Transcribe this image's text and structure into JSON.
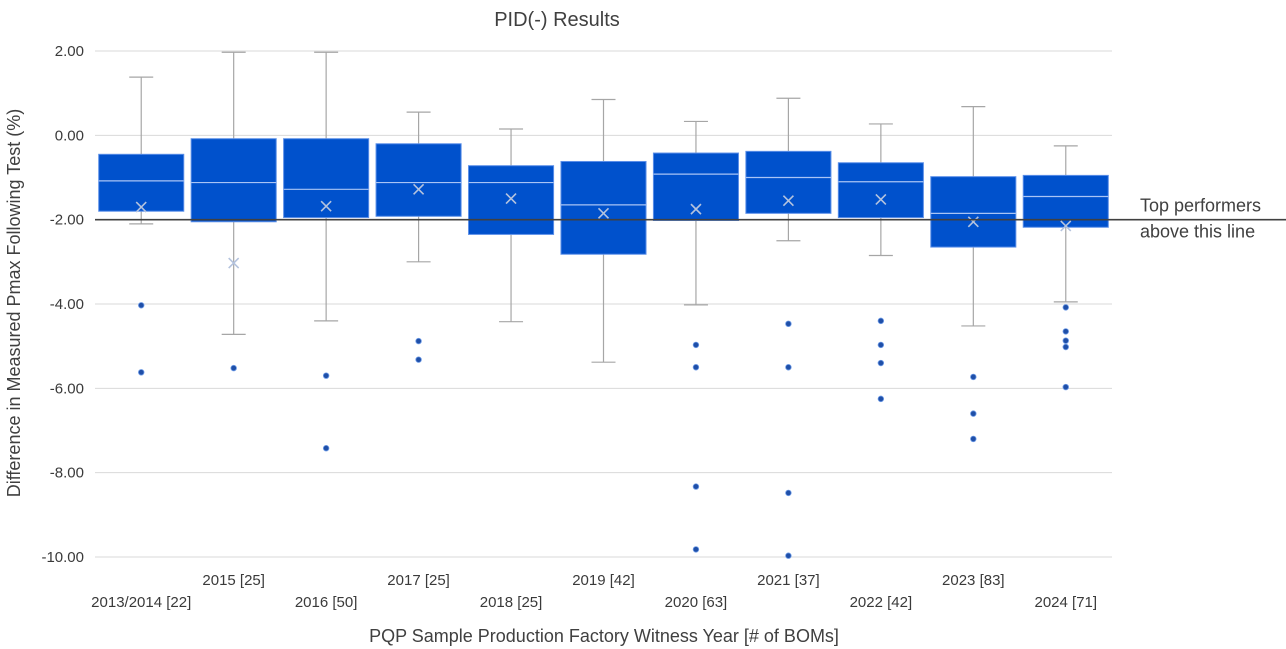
{
  "chart_data": {
    "type": "box",
    "title": "PID(-) Results",
    "xlabel": "PQP Sample Production Factory Witness Year [# of BOMs]",
    "ylabel": "Difference in Measured Pmax Following Test (%)",
    "ylim": [
      -10,
      2
    ],
    "yticks": [
      "2.00",
      "0.00",
      "-2.00",
      "-4.00",
      "-6.00",
      "-8.00",
      "-10.00"
    ],
    "grid": true,
    "legend": "none",
    "reference_line": {
      "y": -2,
      "label_lines": [
        "Top performers",
        "above this line"
      ]
    },
    "colors": {
      "box": "#0051CC",
      "box_edge": "#5B8FE8",
      "whisker": "#A6A6A6",
      "median": "#A9C4F5",
      "mean": "#B4C3DE",
      "outlier": "#1F4FA8",
      "ref_line": "#404040",
      "grid": "#D9D9D9"
    },
    "categories": [
      "2013/2014 [22]",
      "2015 [25]",
      "2016 [50]",
      "2017 [25]",
      "2018 [25]",
      "2019 [42]",
      "2020 [63]",
      "2021 [37]",
      "2022 [42]",
      "2023 [83]",
      "2024 [71]"
    ],
    "boxes": [
      {
        "category": "2013/2014 [22]",
        "whisker_low": -2.1,
        "q1": -1.8,
        "median": -1.08,
        "q3": -0.45,
        "whisker_high": 1.38,
        "mean": -1.7,
        "outliers": [
          -4.03,
          -5.62
        ]
      },
      {
        "category": "2015 [25]",
        "whisker_low": -4.72,
        "q1": -2.05,
        "median": -1.12,
        "q3": -0.08,
        "whisker_high": 1.97,
        "mean": -3.03,
        "outliers": [
          -5.52
        ]
      },
      {
        "category": "2016 [50]",
        "whisker_low": -4.4,
        "q1": -1.95,
        "median": -1.28,
        "q3": -0.08,
        "whisker_high": 1.97,
        "mean": -1.68,
        "outliers": [
          -5.7,
          -7.42
        ]
      },
      {
        "category": "2017 [25]",
        "whisker_low": -3.0,
        "q1": -1.92,
        "median": -1.12,
        "q3": -0.2,
        "whisker_high": 0.55,
        "mean": -1.28,
        "outliers": [
          -4.88,
          -5.32
        ]
      },
      {
        "category": "2018 [25]",
        "whisker_low": -4.42,
        "q1": -2.35,
        "median": -1.12,
        "q3": -0.72,
        "whisker_high": 0.15,
        "mean": -1.5,
        "outliers": []
      },
      {
        "category": "2019 [42]",
        "whisker_low": -5.38,
        "q1": -2.82,
        "median": -1.65,
        "q3": -0.62,
        "whisker_high": 0.85,
        "mean": -1.85,
        "outliers": []
      },
      {
        "category": "2020 [63]",
        "whisker_low": -4.02,
        "q1": -2.02,
        "median": -0.92,
        "q3": -0.42,
        "whisker_high": 0.33,
        "mean": -1.75,
        "outliers": [
          -4.97,
          -5.5,
          -8.33,
          -9.82
        ]
      },
      {
        "category": "2021 [37]",
        "whisker_low": -2.5,
        "q1": -1.85,
        "median": -1.0,
        "q3": -0.38,
        "whisker_high": 0.88,
        "mean": -1.55,
        "outliers": [
          -4.47,
          -5.5,
          -8.48,
          -9.97
        ]
      },
      {
        "category": "2022 [42]",
        "whisker_low": -2.85,
        "q1": -1.95,
        "median": -1.1,
        "q3": -0.65,
        "whisker_high": 0.27,
        "mean": -1.52,
        "outliers": [
          -4.4,
          -4.97,
          -5.4,
          -6.25
        ]
      },
      {
        "category": "2023 [83]",
        "whisker_low": -4.52,
        "q1": -2.65,
        "median": -1.85,
        "q3": -0.98,
        "whisker_high": 0.68,
        "mean": -2.05,
        "outliers": [
          -5.73,
          -6.6,
          -7.2
        ]
      },
      {
        "category": "2024 [71]",
        "whisker_low": -3.95,
        "q1": -2.18,
        "median": -1.45,
        "q3": -0.95,
        "whisker_high": -0.25,
        "mean": -2.15,
        "outliers": [
          -4.08,
          -4.65,
          -4.87,
          -5.02,
          -5.97
        ]
      }
    ]
  }
}
